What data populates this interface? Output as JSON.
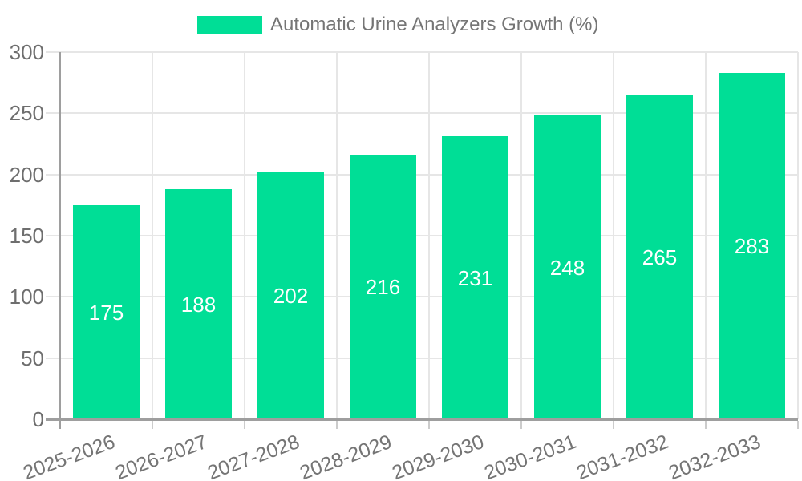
{
  "legend": {
    "label": "Automatic Urine Analyzers Growth (%)"
  },
  "colors": {
    "bar": "#00DE96",
    "grid_line": "#E6E6E6",
    "axis_line": "#9E9E9E",
    "x_tick_mark": "#CCCCCC",
    "axis_text": "#6E6E6E",
    "legend_text": "#757575",
    "x_label_text": "#757575",
    "bar_label_text": "#FFFFFF",
    "background": "#FFFFFF"
  },
  "chart_data": {
    "type": "bar",
    "title": "Automatic Urine Analyzers Growth (%)",
    "categories": [
      "2025-2026",
      "2026-2027",
      "2027-2028",
      "2028-2029",
      "2029-2030",
      "2030-2031",
      "2031-2032",
      "2032-2033"
    ],
    "series": [
      {
        "name": "Automatic Urine Analyzers Growth (%)",
        "values": [
          175,
          188,
          202,
          216,
          231,
          248,
          265,
          283
        ]
      }
    ],
    "xlabel": "",
    "ylabel": "",
    "ylim": [
      0,
      300
    ],
    "yticks": [
      0,
      50,
      100,
      150,
      200,
      250,
      300
    ],
    "grid": true,
    "legend_position": "top-center",
    "value_label_position": "inside-middle",
    "x_tick_rotation_deg": -20
  }
}
